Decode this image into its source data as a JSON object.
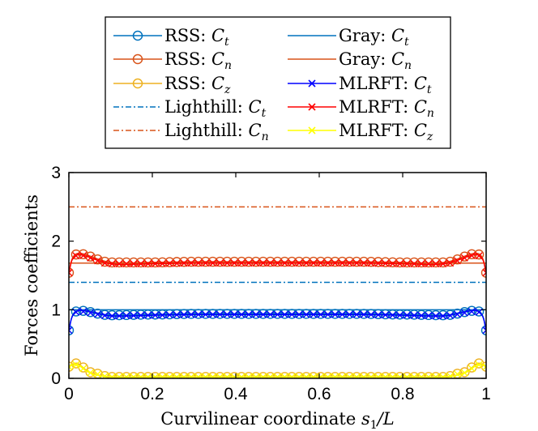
{
  "chart_data": {
    "type": "line",
    "title": "",
    "xlabel": "Curvilinear coordinate s₁/L",
    "xlabel_parts": {
      "text": "Curvilinear coordinate ",
      "var": "s",
      "sub": "1",
      "tail": "/L"
    },
    "ylabel": "Forces coefficients",
    "xlim": [
      0,
      1
    ],
    "ylim": [
      0,
      3
    ],
    "x_ticks": [
      0,
      0.2,
      0.4,
      0.6,
      0.8,
      1
    ],
    "x_tick_labels": [
      "0",
      "0.2",
      "0.4",
      "0.6",
      "0.8",
      "1"
    ],
    "y_ticks": [
      0,
      1,
      2,
      3
    ],
    "y_tick_labels": [
      "0",
      "1",
      "2",
      "3"
    ],
    "grid": false,
    "legend_position": "outside-top",
    "series": [
      {
        "name": "RSS: Ct",
        "prefix": "RSS: ",
        "sym": "C",
        "sub": "t",
        "color": "#0072BD",
        "style": "marker-o",
        "x": [
          0,
          0.02,
          0.1,
          0.2,
          0.3,
          0.4,
          0.5,
          0.6,
          0.7,
          0.8,
          0.9,
          0.98,
          1
        ],
        "values": [
          0.7,
          0.99,
          0.92,
          0.93,
          0.94,
          0.94,
          0.94,
          0.94,
          0.94,
          0.93,
          0.92,
          0.99,
          0.7
        ]
      },
      {
        "name": "RSS: Cn",
        "prefix": "RSS: ",
        "sym": "C",
        "sub": "n",
        "color": "#D95319",
        "style": "marker-o",
        "x": [
          0,
          0.02,
          0.1,
          0.2,
          0.3,
          0.4,
          0.5,
          0.6,
          0.7,
          0.8,
          0.9,
          0.98,
          1
        ],
        "values": [
          1.54,
          1.82,
          1.69,
          1.69,
          1.7,
          1.7,
          1.7,
          1.7,
          1.7,
          1.69,
          1.69,
          1.82,
          1.54
        ]
      },
      {
        "name": "RSS: Cz",
        "prefix": "RSS: ",
        "sym": "C",
        "sub": "z",
        "color": "#EDB120",
        "style": "marker-o",
        "x": [
          0,
          0.02,
          0.05,
          0.1,
          0.2,
          0.3,
          0.4,
          0.5,
          0.6,
          0.7,
          0.8,
          0.9,
          0.95,
          0.98,
          1
        ],
        "values": [
          0.17,
          0.22,
          0.09,
          0.02,
          0.02,
          0.02,
          0.02,
          0.02,
          0.02,
          0.02,
          0.02,
          0.02,
          0.09,
          0.22,
          0.17
        ]
      },
      {
        "name": "Lighthill: Ct",
        "prefix": "Lighthill: ",
        "sym": "C",
        "sub": "t",
        "color": "#0072BD",
        "style": "dashdot",
        "x": [
          0,
          1
        ],
        "values": [
          1.4,
          1.4
        ]
      },
      {
        "name": "Lighthill: Cn",
        "prefix": "Lighthill: ",
        "sym": "C",
        "sub": "n",
        "color": "#D95319",
        "style": "dashdot",
        "x": [
          0,
          1
        ],
        "values": [
          2.5,
          2.5
        ]
      },
      {
        "name": "Gray: Ct",
        "prefix": "Gray: ",
        "sym": "C",
        "sub": "t",
        "color": "#0072BD",
        "style": "solid",
        "x": [
          0,
          1
        ],
        "values": [
          1.0,
          1.0
        ]
      },
      {
        "name": "Gray: Cn",
        "prefix": "Gray: ",
        "sym": "C",
        "sub": "n",
        "color": "#D95319",
        "style": "solid",
        "x": [
          0,
          1
        ],
        "values": [
          1.68,
          1.68
        ]
      },
      {
        "name": "MLRFT: Ct",
        "prefix": "MLRFT: ",
        "sym": "C",
        "sub": "t",
        "color": "#0000FF",
        "style": "marker-x",
        "x": [
          0,
          0.02,
          0.1,
          0.2,
          0.3,
          0.4,
          0.5,
          0.6,
          0.7,
          0.8,
          0.9,
          0.98,
          1
        ],
        "values": [
          0.7,
          0.98,
          0.91,
          0.92,
          0.93,
          0.93,
          0.93,
          0.93,
          0.93,
          0.92,
          0.91,
          0.98,
          0.7
        ]
      },
      {
        "name": "MLRFT: Cn",
        "prefix": "MLRFT: ",
        "sym": "C",
        "sub": "n",
        "color": "#FF0000",
        "style": "marker-x",
        "x": [
          0,
          0.02,
          0.1,
          0.2,
          0.3,
          0.4,
          0.5,
          0.6,
          0.7,
          0.8,
          0.9,
          0.98,
          1
        ],
        "values": [
          1.54,
          1.8,
          1.67,
          1.67,
          1.68,
          1.68,
          1.68,
          1.68,
          1.68,
          1.67,
          1.67,
          1.8,
          1.54
        ]
      },
      {
        "name": "MLRFT: Cz",
        "prefix": "MLRFT: ",
        "sym": "C",
        "sub": "z",
        "color": "#FFFF00",
        "style": "marker-x",
        "x": [
          0,
          0.02,
          0.05,
          0.1,
          0.2,
          0.3,
          0.4,
          0.5,
          0.6,
          0.7,
          0.8,
          0.9,
          0.95,
          0.98,
          1
        ],
        "values": [
          0.17,
          0.2,
          0.08,
          0.02,
          0.02,
          0.02,
          0.02,
          0.02,
          0.02,
          0.02,
          0.02,
          0.02,
          0.08,
          0.2,
          0.17
        ]
      }
    ]
  }
}
